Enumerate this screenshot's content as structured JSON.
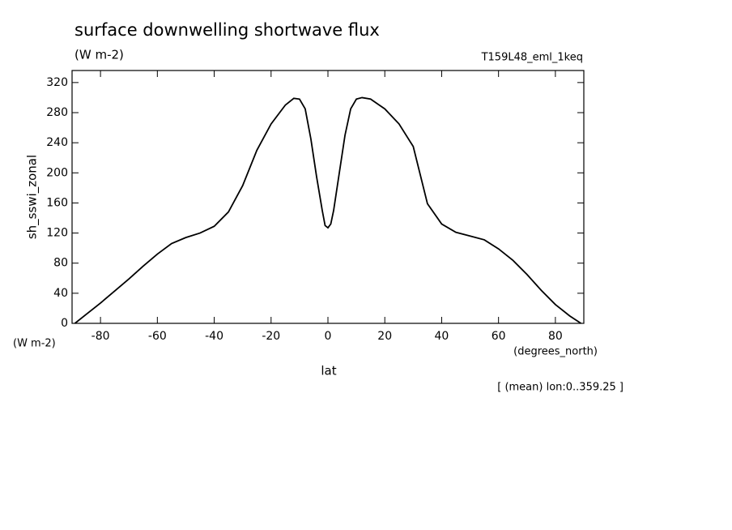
{
  "chart_data": {
    "type": "line",
    "title": "surface downwelling shortwave flux",
    "subtitle": "(W m-2)",
    "dataset": "T159L48_eml_1keq",
    "y_label": "sh_sswi_zonal",
    "y_units": "(W m-2)",
    "x_label": "lat",
    "x_units": "(degrees_north)",
    "note": "[ (mean) lon:0..359.25 ]",
    "x": [
      -89,
      -85,
      -80,
      -75,
      -70,
      -65,
      -60,
      -55,
      -50,
      -45,
      -40,
      -35,
      -30,
      -25,
      -20,
      -15,
      -12,
      -10,
      -8,
      -6,
      -4,
      -2,
      -1,
      0,
      1,
      2,
      4,
      6,
      8,
      10,
      12,
      15,
      20,
      25,
      30,
      35,
      40,
      45,
      50,
      55,
      60,
      65,
      70,
      75,
      80,
      85,
      89
    ],
    "series": [
      {
        "color": "#000000",
        "values": [
          0,
          12,
          27,
          43,
          59,
          76,
          92,
          106,
          114,
          120,
          129,
          148,
          183,
          230,
          265,
          290,
          299,
          298,
          285,
          245,
          195,
          150,
          130,
          127,
          132,
          150,
          200,
          250,
          285,
          298,
          300,
          298,
          285,
          265,
          235,
          159,
          132,
          121,
          116,
          111,
          99,
          84,
          65,
          44,
          25,
          10,
          0
        ]
      }
    ],
    "xlim": [
      -90,
      90
    ],
    "ylim": [
      0,
      336
    ],
    "xticks": [
      -80,
      -60,
      -40,
      -20,
      0,
      20,
      40,
      60,
      80
    ],
    "yticks": [
      0,
      40,
      80,
      120,
      160,
      200,
      240,
      280,
      320
    ]
  }
}
